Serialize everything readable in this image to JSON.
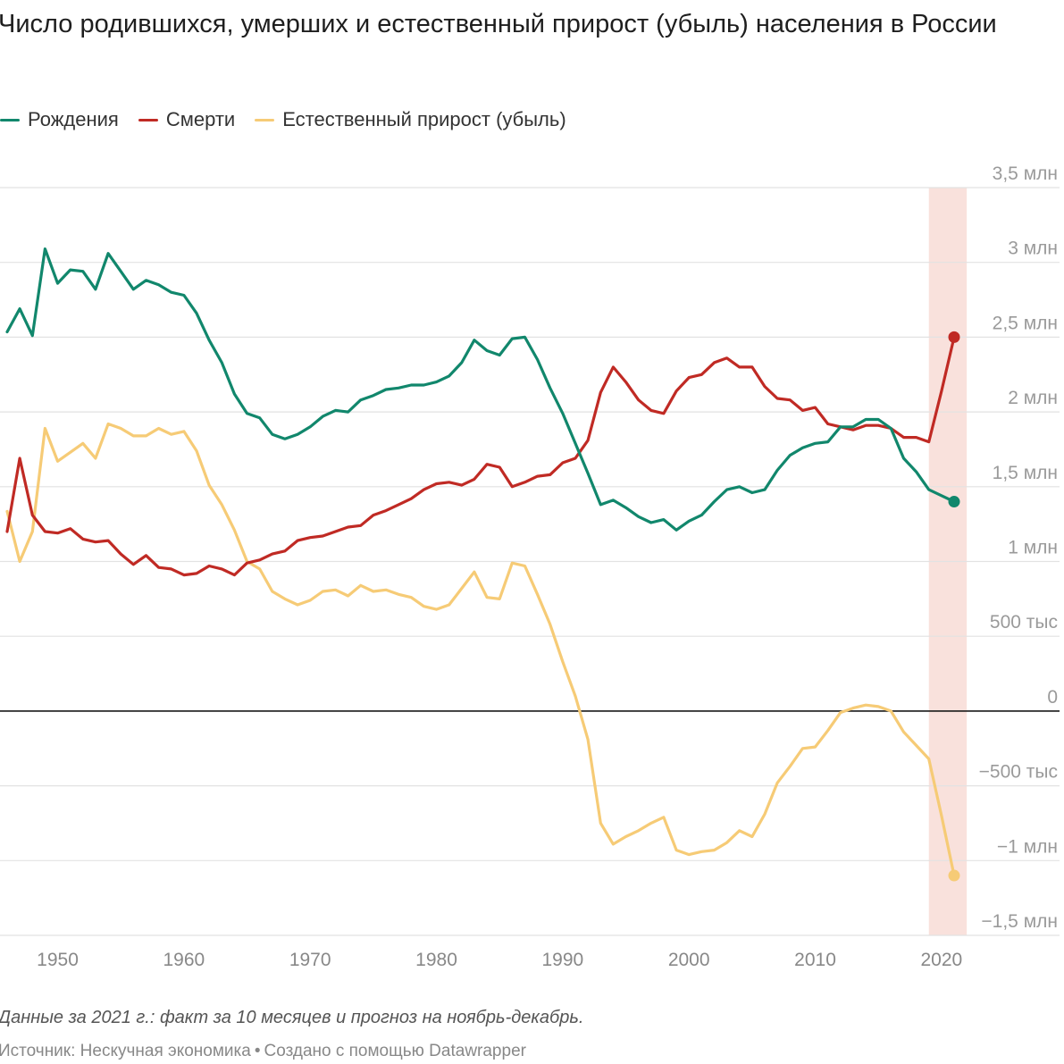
{
  "title": "Число родившихся, умерших и естественный прирост (убыль) населения в России",
  "legend": [
    {
      "label": "Рождения",
      "color": "#11876c"
    },
    {
      "label": "Смерти",
      "color": "#c02a24"
    },
    {
      "label": "Естественный прирост (убыль)",
      "color": "#f6cb76"
    }
  ],
  "note": "Данные за 2021 г.: факт за 10 месяцев и прогноз на ноябрь-декабрь.",
  "source": {
    "text": "Источник: Нескучная экономика",
    "separator": "•",
    "credit": "Создано с помощью Datawrapper"
  },
  "chart_data": {
    "type": "line",
    "xlim": [
      1946,
      2021
    ],
    "ylim": [
      -1500,
      3500
    ],
    "y_ticks": [
      {
        "value": 3500,
        "label": "3,5 млн"
      },
      {
        "value": 3000,
        "label": "3 млн"
      },
      {
        "value": 2500,
        "label": "2,5 млн"
      },
      {
        "value": 2000,
        "label": "2 млн"
      },
      {
        "value": 1500,
        "label": "1,5 млн"
      },
      {
        "value": 1000,
        "label": "1 млн"
      },
      {
        "value": 500,
        "label": "500 тыс"
      },
      {
        "value": 0,
        "label": "0"
      },
      {
        "value": -500,
        "label": "−500 тыс"
      },
      {
        "value": -1000,
        "label": "−1 млн"
      },
      {
        "value": -1500,
        "label": "−1,5 млн"
      }
    ],
    "x_ticks": [
      1950,
      1960,
      1970,
      1980,
      1990,
      2000,
      2010,
      2020
    ],
    "highlight": {
      "from": 2019,
      "to": 2022,
      "color": "#f9e1dc"
    },
    "grid": true,
    "x": [
      1946,
      1947,
      1948,
      1949,
      1950,
      1951,
      1952,
      1953,
      1954,
      1955,
      1956,
      1957,
      1958,
      1959,
      1960,
      1961,
      1962,
      1963,
      1964,
      1965,
      1966,
      1967,
      1968,
      1969,
      1970,
      1971,
      1972,
      1973,
      1974,
      1975,
      1976,
      1977,
      1978,
      1979,
      1980,
      1981,
      1982,
      1983,
      1984,
      1985,
      1986,
      1987,
      1988,
      1989,
      1990,
      1991,
      1992,
      1993,
      1994,
      1995,
      1996,
      1997,
      1998,
      1999,
      2000,
      2001,
      2002,
      2003,
      2004,
      2005,
      2006,
      2007,
      2008,
      2009,
      2010,
      2011,
      2012,
      2013,
      2014,
      2015,
      2016,
      2017,
      2018,
      2019,
      2020,
      2021
    ],
    "series": [
      {
        "name": "Рождения",
        "color": "#11876c",
        "values": [
          2535,
          2690,
          2510,
          3090,
          2860,
          2950,
          2940,
          2820,
          3060,
          2940,
          2820,
          2880,
          2850,
          2800,
          2780,
          2660,
          2480,
          2330,
          2120,
          1990,
          1960,
          1850,
          1820,
          1850,
          1900,
          1970,
          2010,
          2000,
          2080,
          2110,
          2150,
          2160,
          2180,
          2180,
          2200,
          2240,
          2330,
          2480,
          2410,
          2380,
          2490,
          2500,
          2350,
          2160,
          1990,
          1790,
          1590,
          1380,
          1410,
          1360,
          1300,
          1260,
          1280,
          1210,
          1270,
          1310,
          1400,
          1480,
          1500,
          1460,
          1480,
          1610,
          1710,
          1760,
          1790,
          1800,
          1900,
          1900,
          1950,
          1950,
          1890,
          1690,
          1600,
          1480,
          1440,
          1400
        ]
      },
      {
        "name": "Смерти",
        "color": "#c02a24",
        "values": [
          1200,
          1690,
          1310,
          1200,
          1190,
          1220,
          1150,
          1130,
          1140,
          1050,
          980,
          1040,
          960,
          950,
          910,
          920,
          970,
          950,
          910,
          990,
          1010,
          1050,
          1070,
          1140,
          1160,
          1170,
          1200,
          1230,
          1240,
          1310,
          1340,
          1380,
          1420,
          1480,
          1520,
          1530,
          1510,
          1550,
          1650,
          1630,
          1500,
          1530,
          1570,
          1580,
          1660,
          1690,
          1810,
          2130,
          2300,
          2200,
          2080,
          2010,
          1990,
          2140,
          2230,
          2250,
          2330,
          2360,
          2300,
          2300,
          2170,
          2090,
          2080,
          2010,
          2030,
          1920,
          1900,
          1880,
          1910,
          1910,
          1890,
          1830,
          1830,
          1800,
          2140,
          2500
        ]
      },
      {
        "name": "Естественный прирост (убыль)",
        "color": "#f6cb76",
        "values": [
          1335,
          1000,
          1200,
          1890,
          1670,
          1730,
          1790,
          1690,
          1920,
          1890,
          1840,
          1840,
          1890,
          1850,
          1870,
          1740,
          1510,
          1380,
          1210,
          1000,
          950,
          800,
          750,
          710,
          740,
          800,
          810,
          770,
          840,
          800,
          810,
          780,
          760,
          700,
          680,
          710,
          820,
          930,
          760,
          750,
          990,
          970,
          780,
          580,
          330,
          100,
          -190,
          -750,
          -890,
          -840,
          -800,
          -750,
          -710,
          -930,
          -960,
          -940,
          -930,
          -880,
          -800,
          -840,
          -690,
          -480,
          -370,
          -250,
          -240,
          -130,
          -10,
          20,
          40,
          30,
          0,
          -140,
          -230,
          -320,
          -700,
          -1100
        ]
      }
    ]
  }
}
